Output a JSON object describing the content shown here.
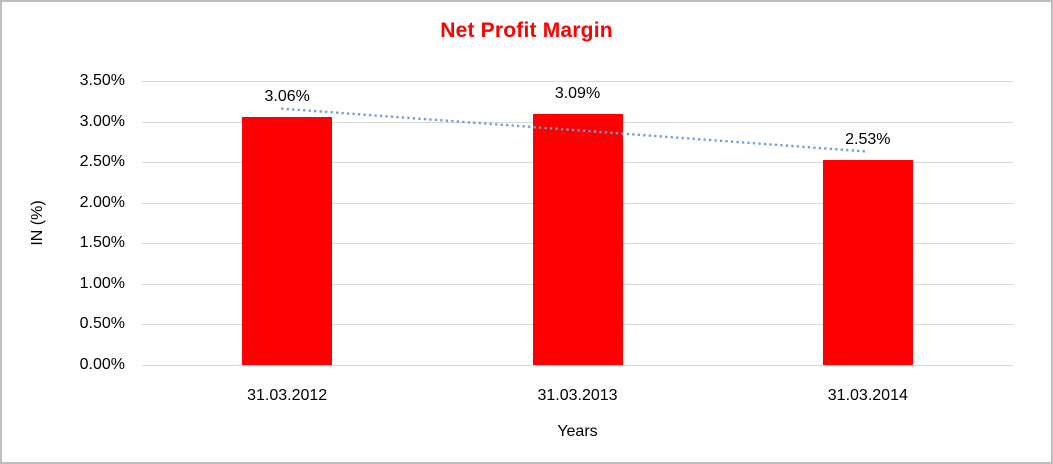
{
  "window": {
    "background": "#ffffff",
    "frame_border_color": "#bfbfbf"
  },
  "chart_data": {
    "type": "bar",
    "title": "Net Profit Margin",
    "title_color": "#ff0000",
    "categories": [
      "31.03.2012",
      "31.03.2013",
      "31.03.2014"
    ],
    "values": [
      3.06,
      3.09,
      2.53
    ],
    "data_labels": [
      "3.06%",
      "3.09%",
      "2.53%"
    ],
    "xlabel": "Years",
    "ylabel": "IN (%)",
    "ylim": [
      0,
      3.5
    ],
    "ytick_step": 0.5,
    "ytick_labels": [
      "0.00%",
      "0.50%",
      "1.00%",
      "1.50%",
      "2.00%",
      "2.50%",
      "3.00%",
      "3.50%"
    ],
    "grid": true,
    "legend": "none",
    "bar_color": "#ff0000",
    "gridline_color": "#d9d9d9",
    "text_color": "#000000",
    "trendline": {
      "style": "dotted",
      "color": "#6f9fd8",
      "start_value": 3.16,
      "end_value": 2.63
    }
  }
}
